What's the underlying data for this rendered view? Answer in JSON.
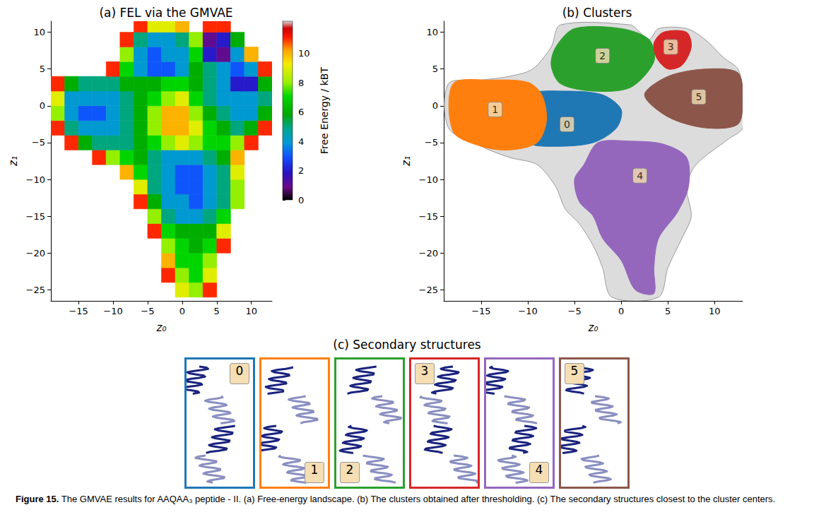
{
  "chart_data": [
    {
      "type": "heatmap",
      "title": "(a) FEL via the GMVAE",
      "x_label": "z₀",
      "y_label": "z₁",
      "xlim": [
        -19,
        13
      ],
      "ylim": [
        -26.5,
        11.5
      ],
      "xticks": [
        {
          "value": -15,
          "label": "−15"
        },
        {
          "value": -10,
          "label": "−10"
        },
        {
          "value": -5,
          "label": "−5"
        },
        0,
        5,
        10
      ],
      "yticks": [
        {
          "value": -25,
          "label": "−25"
        },
        {
          "value": -20,
          "label": "−20"
        },
        {
          "value": -15,
          "label": "−15"
        },
        {
          "value": -10,
          "label": "−10"
        },
        {
          "value": -5,
          "label": "−5"
        },
        0,
        5,
        10
      ],
      "x": [
        -18,
        -16,
        -14,
        -12,
        -10,
        -8,
        -6,
        -4,
        -2,
        0,
        2,
        4,
        6,
        8,
        10,
        12
      ],
      "y": [
        -25,
        -23,
        -21,
        -19,
        -17,
        -15,
        -13,
        -11,
        -9,
        -7,
        -5,
        -3,
        -1,
        1,
        3,
        5,
        7,
        9,
        11
      ],
      "values": [
        [
          null,
          null,
          null,
          null,
          null,
          null,
          null,
          null,
          null,
          9,
          8,
          11,
          null,
          null,
          null,
          null
        ],
        [
          null,
          null,
          null,
          null,
          null,
          null,
          null,
          null,
          11,
          8,
          7,
          9,
          null,
          null,
          null,
          null
        ],
        [
          null,
          null,
          null,
          null,
          null,
          null,
          null,
          null,
          10,
          7,
          7,
          8,
          null,
          null,
          null,
          null
        ],
        [
          null,
          null,
          null,
          null,
          null,
          null,
          null,
          null,
          8,
          7,
          6,
          7,
          11,
          null,
          null,
          null
        ],
        [
          null,
          null,
          null,
          null,
          null,
          null,
          null,
          11,
          7,
          6,
          6,
          6,
          9,
          null,
          null,
          null
        ],
        [
          null,
          null,
          null,
          null,
          null,
          null,
          null,
          8,
          5,
          4,
          4,
          5,
          7,
          null,
          null,
          null
        ],
        [
          null,
          null,
          null,
          null,
          null,
          null,
          11,
          6,
          4,
          4,
          3,
          4,
          5,
          8,
          null,
          null
        ],
        [
          null,
          null,
          null,
          null,
          null,
          null,
          9,
          5,
          4,
          3,
          3,
          4,
          5,
          8,
          null,
          null
        ],
        [
          null,
          null,
          null,
          null,
          null,
          10,
          7,
          5,
          4,
          3,
          3,
          4,
          5,
          9,
          null,
          null
        ],
        [
          null,
          null,
          null,
          11,
          8,
          7,
          6,
          5,
          4,
          4,
          4,
          5,
          6,
          10,
          null,
          null
        ],
        [
          null,
          11,
          6,
          5,
          5,
          5,
          6,
          7,
          8,
          9,
          8,
          7,
          7,
          8,
          11,
          null
        ],
        [
          11,
          5,
          4,
          4,
          4,
          5,
          6,
          8,
          10,
          10,
          9,
          7,
          6,
          5,
          6,
          11
        ],
        [
          8,
          4,
          3,
          3,
          4,
          5,
          6,
          8,
          10,
          10,
          8,
          6,
          5,
          4,
          4,
          6
        ],
        [
          9,
          4,
          4,
          4,
          4,
          5,
          6,
          7,
          8,
          9,
          7,
          5,
          4,
          4,
          4,
          5
        ],
        [
          11,
          6,
          5,
          5,
          5,
          6,
          6,
          6,
          7,
          7,
          6,
          5,
          4,
          2,
          2,
          6
        ],
        [
          null,
          null,
          null,
          null,
          11,
          7,
          4,
          3,
          3,
          4,
          6,
          5,
          4,
          3,
          4,
          11
        ],
        [
          null,
          null,
          null,
          null,
          null,
          8,
          4,
          3,
          4,
          4,
          7,
          2,
          1,
          4,
          10,
          null
        ],
        [
          null,
          null,
          null,
          null,
          null,
          11,
          5,
          4,
          4,
          5,
          8,
          1,
          2,
          6,
          null,
          null
        ],
        [
          null,
          null,
          null,
          null,
          null,
          null,
          11,
          9,
          9,
          10,
          null,
          11,
          11,
          null,
          null,
          null
        ]
      ],
      "colorbar": {
        "label": "Free Energy / kBT",
        "range": [
          0,
          12.2
        ],
        "ticks": [
          0,
          2,
          4,
          6,
          8,
          10
        ]
      }
    },
    {
      "type": "cluster_map",
      "title": "(b) Clusters",
      "x_label": "z₀",
      "y_label": "z₁",
      "xlim": [
        -19,
        13
      ],
      "ylim": [
        -26.5,
        11.5
      ],
      "xticks": [
        {
          "value": -15,
          "label": "−15"
        },
        {
          "value": -10,
          "label": "−10"
        },
        {
          "value": -5,
          "label": "−5"
        },
        0,
        5,
        10
      ],
      "yticks": [
        {
          "value": -25,
          "label": "−25"
        },
        {
          "value": -20,
          "label": "−20"
        },
        {
          "value": -15,
          "label": "−15"
        },
        {
          "value": -10,
          "label": "−10"
        },
        {
          "value": -5,
          "label": "−5"
        },
        0,
        5,
        10
      ],
      "outline": [
        [
          -18.5,
          3
        ],
        [
          -15,
          3.5
        ],
        [
          -12,
          4
        ],
        [
          -9.5,
          5
        ],
        [
          -7.5,
          8
        ],
        [
          -6.5,
          11
        ],
        [
          1,
          11
        ],
        [
          2,
          10
        ],
        [
          3,
          9
        ],
        [
          4,
          10.5
        ],
        [
          7,
          10.5
        ],
        [
          9,
          9
        ],
        [
          11,
          6.5
        ],
        [
          12.5,
          5
        ],
        [
          13,
          2
        ],
        [
          13,
          -3
        ],
        [
          11.5,
          -4.5
        ],
        [
          8,
          -8
        ],
        [
          7,
          -11
        ],
        [
          7.5,
          -15
        ],
        [
          6.5,
          -18
        ],
        [
          5,
          -22
        ],
        [
          4,
          -26
        ],
        [
          -1,
          -26
        ],
        [
          -2,
          -22
        ],
        [
          -3,
          -19
        ],
        [
          -4.5,
          -16
        ],
        [
          -6,
          -14
        ],
        [
          -7,
          -11
        ],
        [
          -9,
          -8
        ],
        [
          -12,
          -7
        ],
        [
          -15,
          -5.5
        ],
        [
          -18.5,
          -3
        ]
      ],
      "clusters": [
        {
          "name": "0",
          "color": "#1f77b4",
          "center": [
            -5.8,
            -2.5
          ],
          "outline": [
            [
              -10,
              1.5
            ],
            [
              -6,
              2
            ],
            [
              -2,
              1.5
            ],
            [
              0,
              -0.5
            ],
            [
              -0.5,
              -3
            ],
            [
              -3,
              -5
            ],
            [
              -7,
              -5.5
            ],
            [
              -10,
              -5
            ],
            [
              -10.5,
              -2
            ]
          ]
        },
        {
          "name": "1",
          "color": "#ff7f0e",
          "center": [
            -13.5,
            -0.5
          ],
          "outline": [
            [
              -18,
              3
            ],
            [
              -14,
              3.5
            ],
            [
              -10,
              3.2
            ],
            [
              -8.5,
              1.5
            ],
            [
              -8,
              -2
            ],
            [
              -9,
              -5
            ],
            [
              -12,
              -6
            ],
            [
              -15,
              -5.5
            ],
            [
              -18,
              -3.5
            ]
          ]
        },
        {
          "name": "2",
          "color": "#2ca02c",
          "center": [
            -2,
            6.8
          ],
          "outline": [
            [
              -7,
              8
            ],
            [
              -5,
              10.5
            ],
            [
              0,
              10.5
            ],
            [
              3,
              9
            ],
            [
              3.5,
              6
            ],
            [
              1,
              2.5
            ],
            [
              -3,
              2
            ],
            [
              -6.5,
              3
            ],
            [
              -7.5,
              5.5
            ]
          ]
        },
        {
          "name": "3",
          "color": "#d62728",
          "center": [
            5.3,
            8
          ],
          "outline": [
            [
              3.5,
              8.5
            ],
            [
              4.5,
              10
            ],
            [
              7,
              10
            ],
            [
              7.5,
              8
            ],
            [
              6.5,
              5.5
            ],
            [
              5,
              5
            ],
            [
              3.8,
              6.5
            ]
          ]
        },
        {
          "name": "4",
          "color": "#9467bd",
          "center": [
            2,
            -9.5
          ],
          "outline": [
            [
              -4,
              -8
            ],
            [
              -2.5,
              -5
            ],
            [
              1,
              -4.8
            ],
            [
              4.5,
              -5.2
            ],
            [
              7,
              -7
            ],
            [
              7.2,
              -11
            ],
            [
              6,
              -14.5
            ],
            [
              4,
              -18
            ],
            [
              3.5,
              -22
            ],
            [
              3.5,
              -25.5
            ],
            [
              1.5,
              -25
            ],
            [
              0,
              -21
            ],
            [
              -2,
              -18
            ],
            [
              -3,
              -15
            ],
            [
              -4.5,
              -13
            ],
            [
              -5,
              -10
            ]
          ]
        },
        {
          "name": "5",
          "color": "#8c564b",
          "center": [
            8.3,
            1.2
          ],
          "outline": [
            [
              2.5,
              1.5
            ],
            [
              5,
              4
            ],
            [
              9,
              5
            ],
            [
              12.5,
              4.5
            ],
            [
              13,
              1
            ],
            [
              12.5,
              -2.5
            ],
            [
              9,
              -3
            ],
            [
              5,
              -1.5
            ]
          ]
        }
      ]
    }
  ],
  "panel_c": {
    "title": "(c) Secondary structures",
    "items": [
      "0",
      "1",
      "2",
      "3",
      "4",
      "5"
    ]
  },
  "caption": {
    "label": "Figure 15.",
    "text": "The GMVAE results for AAQAA₃ peptide - II. (a) Free-energy landscape. (b) The clusters obtained after thresholding. (c) The secondary structures closest to the cluster centers."
  }
}
